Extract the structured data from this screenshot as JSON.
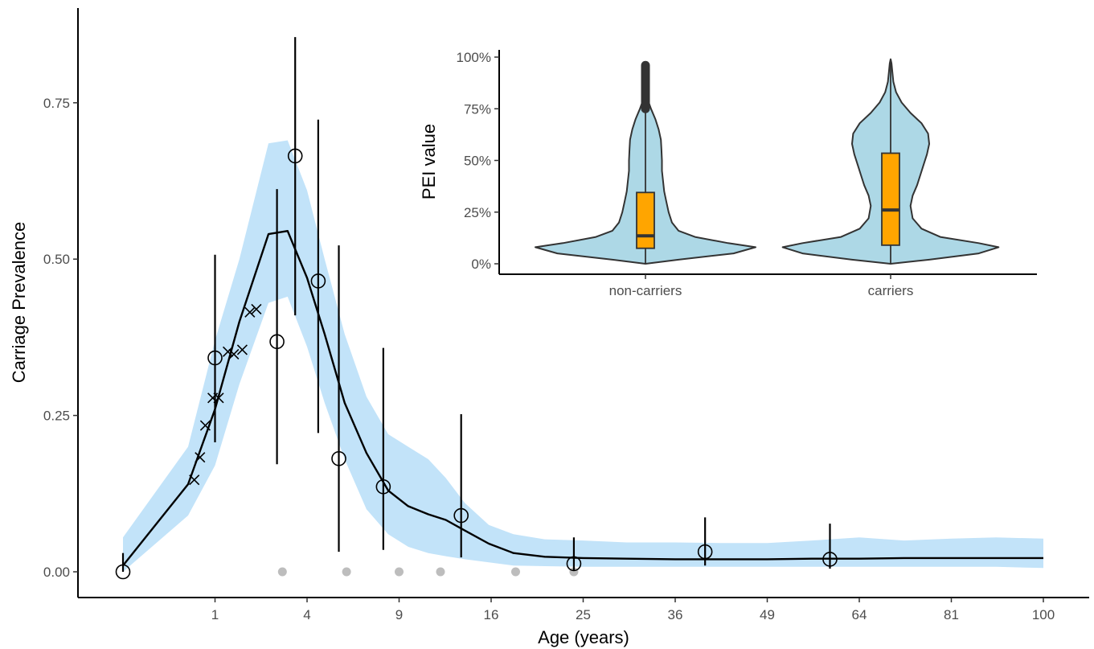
{
  "chart_data": [
    {
      "type": "line",
      "panel": "main",
      "xlabel": "Age (years)",
      "ylabel": "Carriage Prevalence",
      "x_scale": "sqrt",
      "xlim": [
        0,
        100
      ],
      "ylim": [
        0,
        0.85
      ],
      "x_ticks": [
        1,
        4,
        9,
        16,
        25,
        36,
        49,
        64,
        81,
        100
      ],
      "x_tick_labels": [
        "1",
        "4",
        "9",
        "16",
        "25",
        "36",
        "49",
        "64",
        "81",
        "100"
      ],
      "y_ticks": [
        0,
        0.25,
        0.5,
        0.75
      ],
      "y_tick_labels": [
        "0.00",
        "0.25",
        "0.50",
        "0.75"
      ],
      "grid": false,
      "colors": {
        "ribbon": "#c2e3f9",
        "line": "#000000",
        "zero_points": "#bdbdbd"
      },
      "model_fit": {
        "x": [
          0,
          0.5,
          1,
          1.6,
          2.5,
          3.2,
          4,
          4.8,
          5.8,
          7,
          8.3,
          9.6,
          11,
          12.3,
          13.8,
          15.8,
          18,
          21,
          25,
          30,
          36,
          42,
          49,
          56,
          64,
          72,
          81,
          90,
          100
        ],
        "y": [
          0.01,
          0.14,
          0.26,
          0.4,
          0.54,
          0.545,
          0.47,
          0.38,
          0.27,
          0.19,
          0.13,
          0.105,
          0.092,
          0.083,
          0.066,
          0.045,
          0.03,
          0.024,
          0.022,
          0.021,
          0.02,
          0.02,
          0.02,
          0.021,
          0.021,
          0.022,
          0.022,
          0.022,
          0.022
        ]
      },
      "ribbon": {
        "x": [
          0,
          0.5,
          1,
          1.6,
          2.5,
          3.2,
          4,
          4.8,
          5.8,
          7,
          8.3,
          9.6,
          11,
          12.3,
          13.8,
          15.8,
          18,
          21,
          25,
          30,
          36,
          42,
          49,
          56,
          64,
          72,
          81,
          90,
          100
        ],
        "lower": [
          0.0,
          0.09,
          0.17,
          0.3,
          0.43,
          0.44,
          0.36,
          0.27,
          0.18,
          0.1,
          0.06,
          0.04,
          0.03,
          0.025,
          0.02,
          0.015,
          0.01,
          0.009,
          0.008,
          0.008,
          0.008,
          0.008,
          0.008,
          0.008,
          0.008,
          0.008,
          0.008,
          0.008,
          0.006
        ],
        "upper": [
          0.055,
          0.2,
          0.37,
          0.5,
          0.685,
          0.69,
          0.61,
          0.5,
          0.38,
          0.28,
          0.22,
          0.2,
          0.18,
          0.15,
          0.11,
          0.075,
          0.06,
          0.052,
          0.05,
          0.047,
          0.047,
          0.046,
          0.046,
          0.05,
          0.055,
          0.05,
          0.053,
          0.055,
          0.053
        ]
      },
      "observed_circles": [
        {
          "x": 0,
          "y": 0.0,
          "low": 0.0,
          "high": 0.03
        },
        {
          "x": 1.0,
          "y": 0.342,
          "low": 0.207,
          "high": 0.507
        },
        {
          "x": 2.8,
          "y": 0.368,
          "low": 0.172,
          "high": 0.612
        },
        {
          "x": 3.5,
          "y": 0.665,
          "low": 0.41,
          "high": 0.855
        },
        {
          "x": 4.5,
          "y": 0.465,
          "low": 0.222,
          "high": 0.723
        },
        {
          "x": 5.5,
          "y": 0.181,
          "low": 0.032,
          "high": 0.522
        },
        {
          "x": 8.0,
          "y": 0.136,
          "low": 0.035,
          "high": 0.358
        },
        {
          "x": 13.5,
          "y": 0.09,
          "low": 0.023,
          "high": 0.252
        },
        {
          "x": 24.0,
          "y": 0.013,
          "low": 0.002,
          "high": 0.055
        },
        {
          "x": 40.0,
          "y": 0.032,
          "low": 0.01,
          "high": 0.087
        },
        {
          "x": 59.0,
          "y": 0.02,
          "low": 0.005,
          "high": 0.077
        }
      ],
      "observed_crosses": [
        {
          "x": 0.6,
          "y": 0.147
        },
        {
          "x": 0.7,
          "y": 0.183
        },
        {
          "x": 0.8,
          "y": 0.234
        },
        {
          "x": 0.95,
          "y": 0.278
        },
        {
          "x": 1.08,
          "y": 0.278
        },
        {
          "x": 1.3,
          "y": 0.352
        },
        {
          "x": 1.45,
          "y": 0.348
        },
        {
          "x": 1.68,
          "y": 0.355
        },
        {
          "x": 1.9,
          "y": 0.415
        },
        {
          "x": 2.1,
          "y": 0.42
        }
      ],
      "zero_points_x": [
        3.0,
        5.9,
        9.0,
        11.9,
        18.2,
        24.0
      ]
    },
    {
      "type": "violin",
      "panel": "inset",
      "xlabel": "",
      "ylabel": "PEI value",
      "categories": [
        "non-carriers",
        "carriers"
      ],
      "ylim": [
        0,
        1
      ],
      "y_ticks": [
        0,
        0.25,
        0.5,
        0.75,
        1.0
      ],
      "y_tick_labels": [
        "0%",
        "25%",
        "50%",
        "75%",
        "100%"
      ],
      "colors": {
        "violin_fill": "#add8e6",
        "box_fill": "#ffa500",
        "outline": "#333333"
      },
      "violins": [
        {
          "category": "non-carriers",
          "density_y": [
            0.0,
            0.02,
            0.05,
            0.08,
            0.1,
            0.13,
            0.16,
            0.2,
            0.25,
            0.3,
            0.35,
            0.4,
            0.45,
            0.5,
            0.55,
            0.6,
            0.65,
            0.7,
            0.75,
            0.78,
            0.81
          ],
          "half_width": [
            0.0,
            0.3,
            0.8,
            1.0,
            0.75,
            0.45,
            0.3,
            0.24,
            0.21,
            0.19,
            0.17,
            0.16,
            0.15,
            0.15,
            0.145,
            0.14,
            0.12,
            0.09,
            0.05,
            0.03,
            0.0
          ],
          "box": {
            "q1": 0.075,
            "median": 0.135,
            "q3": 0.345,
            "whisker_low": 0.0,
            "whisker_high": 0.75
          },
          "outliers_range": [
            0.75,
            0.96
          ]
        },
        {
          "category": "carriers",
          "density_y": [
            0.0,
            0.02,
            0.05,
            0.08,
            0.1,
            0.13,
            0.17,
            0.22,
            0.28,
            0.33,
            0.38,
            0.43,
            0.48,
            0.53,
            0.58,
            0.63,
            0.68,
            0.73,
            0.78,
            0.83,
            0.88,
            0.93,
            0.97,
            0.99
          ],
          "half_width": [
            0.0,
            0.35,
            0.8,
            0.98,
            0.8,
            0.45,
            0.28,
            0.2,
            0.18,
            0.2,
            0.24,
            0.27,
            0.3,
            0.33,
            0.35,
            0.34,
            0.28,
            0.18,
            0.1,
            0.05,
            0.025,
            0.015,
            0.008,
            0.0
          ],
          "box": {
            "q1": 0.09,
            "median": 0.26,
            "q3": 0.535,
            "whisker_low": 0.0,
            "whisker_high": 0.99
          },
          "outliers_range": null
        }
      ]
    }
  ]
}
